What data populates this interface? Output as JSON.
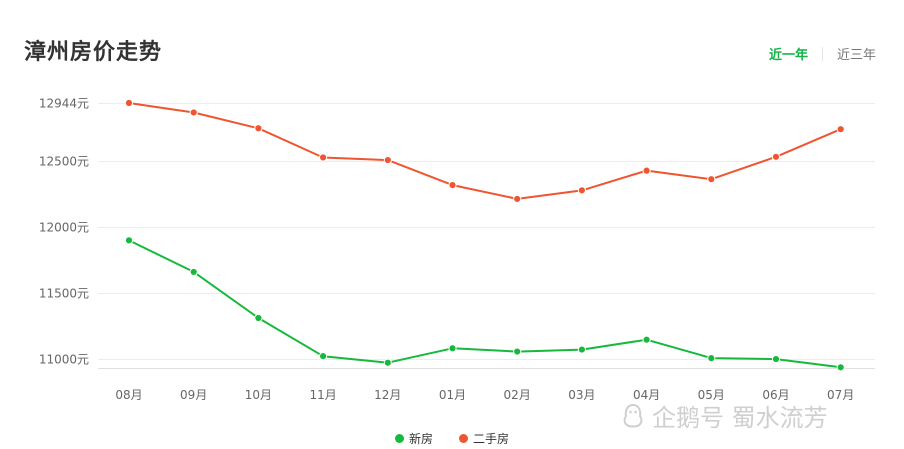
{
  "header": {
    "title": "漳州房价走势",
    "tabs": [
      {
        "label": "近一年",
        "active": true
      },
      {
        "label": "近三年",
        "active": false
      }
    ]
  },
  "watermark": {
    "text": "企鹅号 蜀水流芳",
    "icon": "penguin-logo-icon"
  },
  "colors": {
    "new_house": "#16b93c",
    "second_hand": "#ee5530",
    "tab_active": "#13b349"
  },
  "chart_data": {
    "type": "line",
    "title": "漳州房价走势",
    "categories": [
      "08月",
      "09月",
      "10月",
      "11月",
      "12月",
      "01月",
      "02月",
      "03月",
      "04月",
      "05月",
      "06月",
      "07月"
    ],
    "y_ticks": [
      {
        "value": 11000,
        "label": "11000元"
      },
      {
        "value": 11500,
        "label": "11500元"
      },
      {
        "value": 12000,
        "label": "12000元"
      },
      {
        "value": 12500,
        "label": "12500元"
      },
      {
        "value": 12944,
        "label": "12944元"
      }
    ],
    "ylim": [
      10930,
      12944
    ],
    "grid": true,
    "legend_position": "bottom-center",
    "series": [
      {
        "name": "新房",
        "color": "#16b93c",
        "values": [
          11900,
          11660,
          11310,
          11020,
          10970,
          11080,
          11055,
          11070,
          11145,
          11005,
          10998,
          10935
        ]
      },
      {
        "name": "二手房",
        "color": "#ee5530",
        "values": [
          12944,
          12872,
          12752,
          12530,
          12510,
          12320,
          12215,
          12280,
          12430,
          12365,
          12535,
          12745
        ]
      }
    ]
  }
}
